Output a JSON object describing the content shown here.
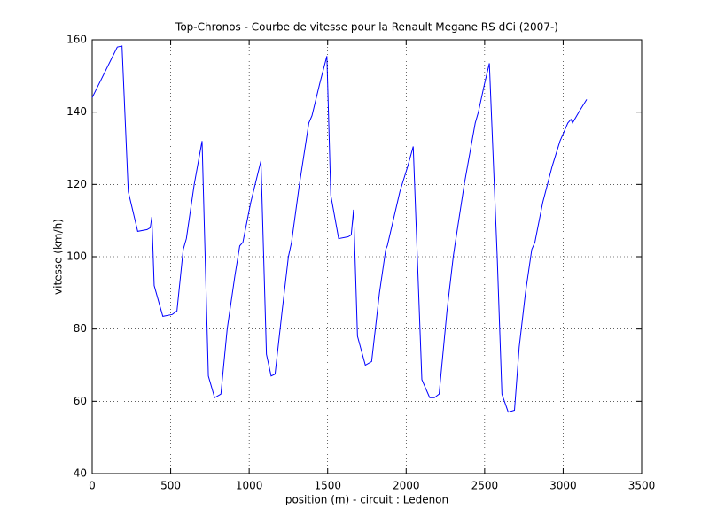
{
  "chart_data": {
    "type": "line",
    "title": "Top-Chronos - Courbe de vitesse pour la Renault Megane RS dCi (2007-)",
    "xlabel": "position (m) - circuit : Ledenon",
    "ylabel": "vitesse (km/h)",
    "color": "#0000ff",
    "x": [
      0,
      160,
      190,
      230,
      290,
      350,
      370,
      380,
      395,
      450,
      510,
      540,
      580,
      600,
      650,
      700,
      740,
      780,
      820,
      860,
      910,
      940,
      960,
      1010,
      1075,
      1110,
      1140,
      1165,
      1210,
      1250,
      1270,
      1320,
      1380,
      1400,
      1450,
      1495,
      1520,
      1570,
      1630,
      1650,
      1665,
      1690,
      1740,
      1780,
      1830,
      1870,
      1880,
      1960,
      2010,
      2045,
      2100,
      2150,
      2180,
      2210,
      2260,
      2300,
      2310,
      2370,
      2440,
      2460,
      2500,
      2530,
      2580,
      2610,
      2650,
      2690,
      2720,
      2760,
      2800,
      2820,
      2870,
      2930,
      2980,
      3030,
      3050,
      3060,
      3100,
      3150
    ],
    "values": [
      144,
      158,
      158.3,
      118,
      107,
      107.5,
      108,
      111,
      92,
      83.5,
      84,
      85,
      102,
      105,
      120,
      132,
      67,
      61,
      62,
      80,
      95,
      103,
      104,
      115,
      126.5,
      73,
      67,
      67.5,
      85,
      100,
      104,
      120,
      137,
      139,
      148,
      155.5,
      117,
      105,
      105.5,
      106,
      113,
      78,
      70,
      71,
      90,
      102,
      103,
      118,
      125,
      130.5,
      66,
      61,
      61,
      62,
      85,
      100,
      103,
      120,
      137,
      140,
      148,
      153.5,
      100,
      62,
      57,
      57.5,
      75,
      90,
      102,
      104,
      115,
      125,
      132,
      137,
      138,
      137,
      140,
      143.5
    ],
    "xlim": [
      0,
      3500
    ],
    "xticks": [
      0,
      500,
      1000,
      1500,
      2000,
      2500,
      3000,
      3500
    ],
    "ylim": [
      40,
      160
    ],
    "yticks": [
      40,
      60,
      80,
      100,
      120,
      140,
      160
    ],
    "grid": true
  }
}
